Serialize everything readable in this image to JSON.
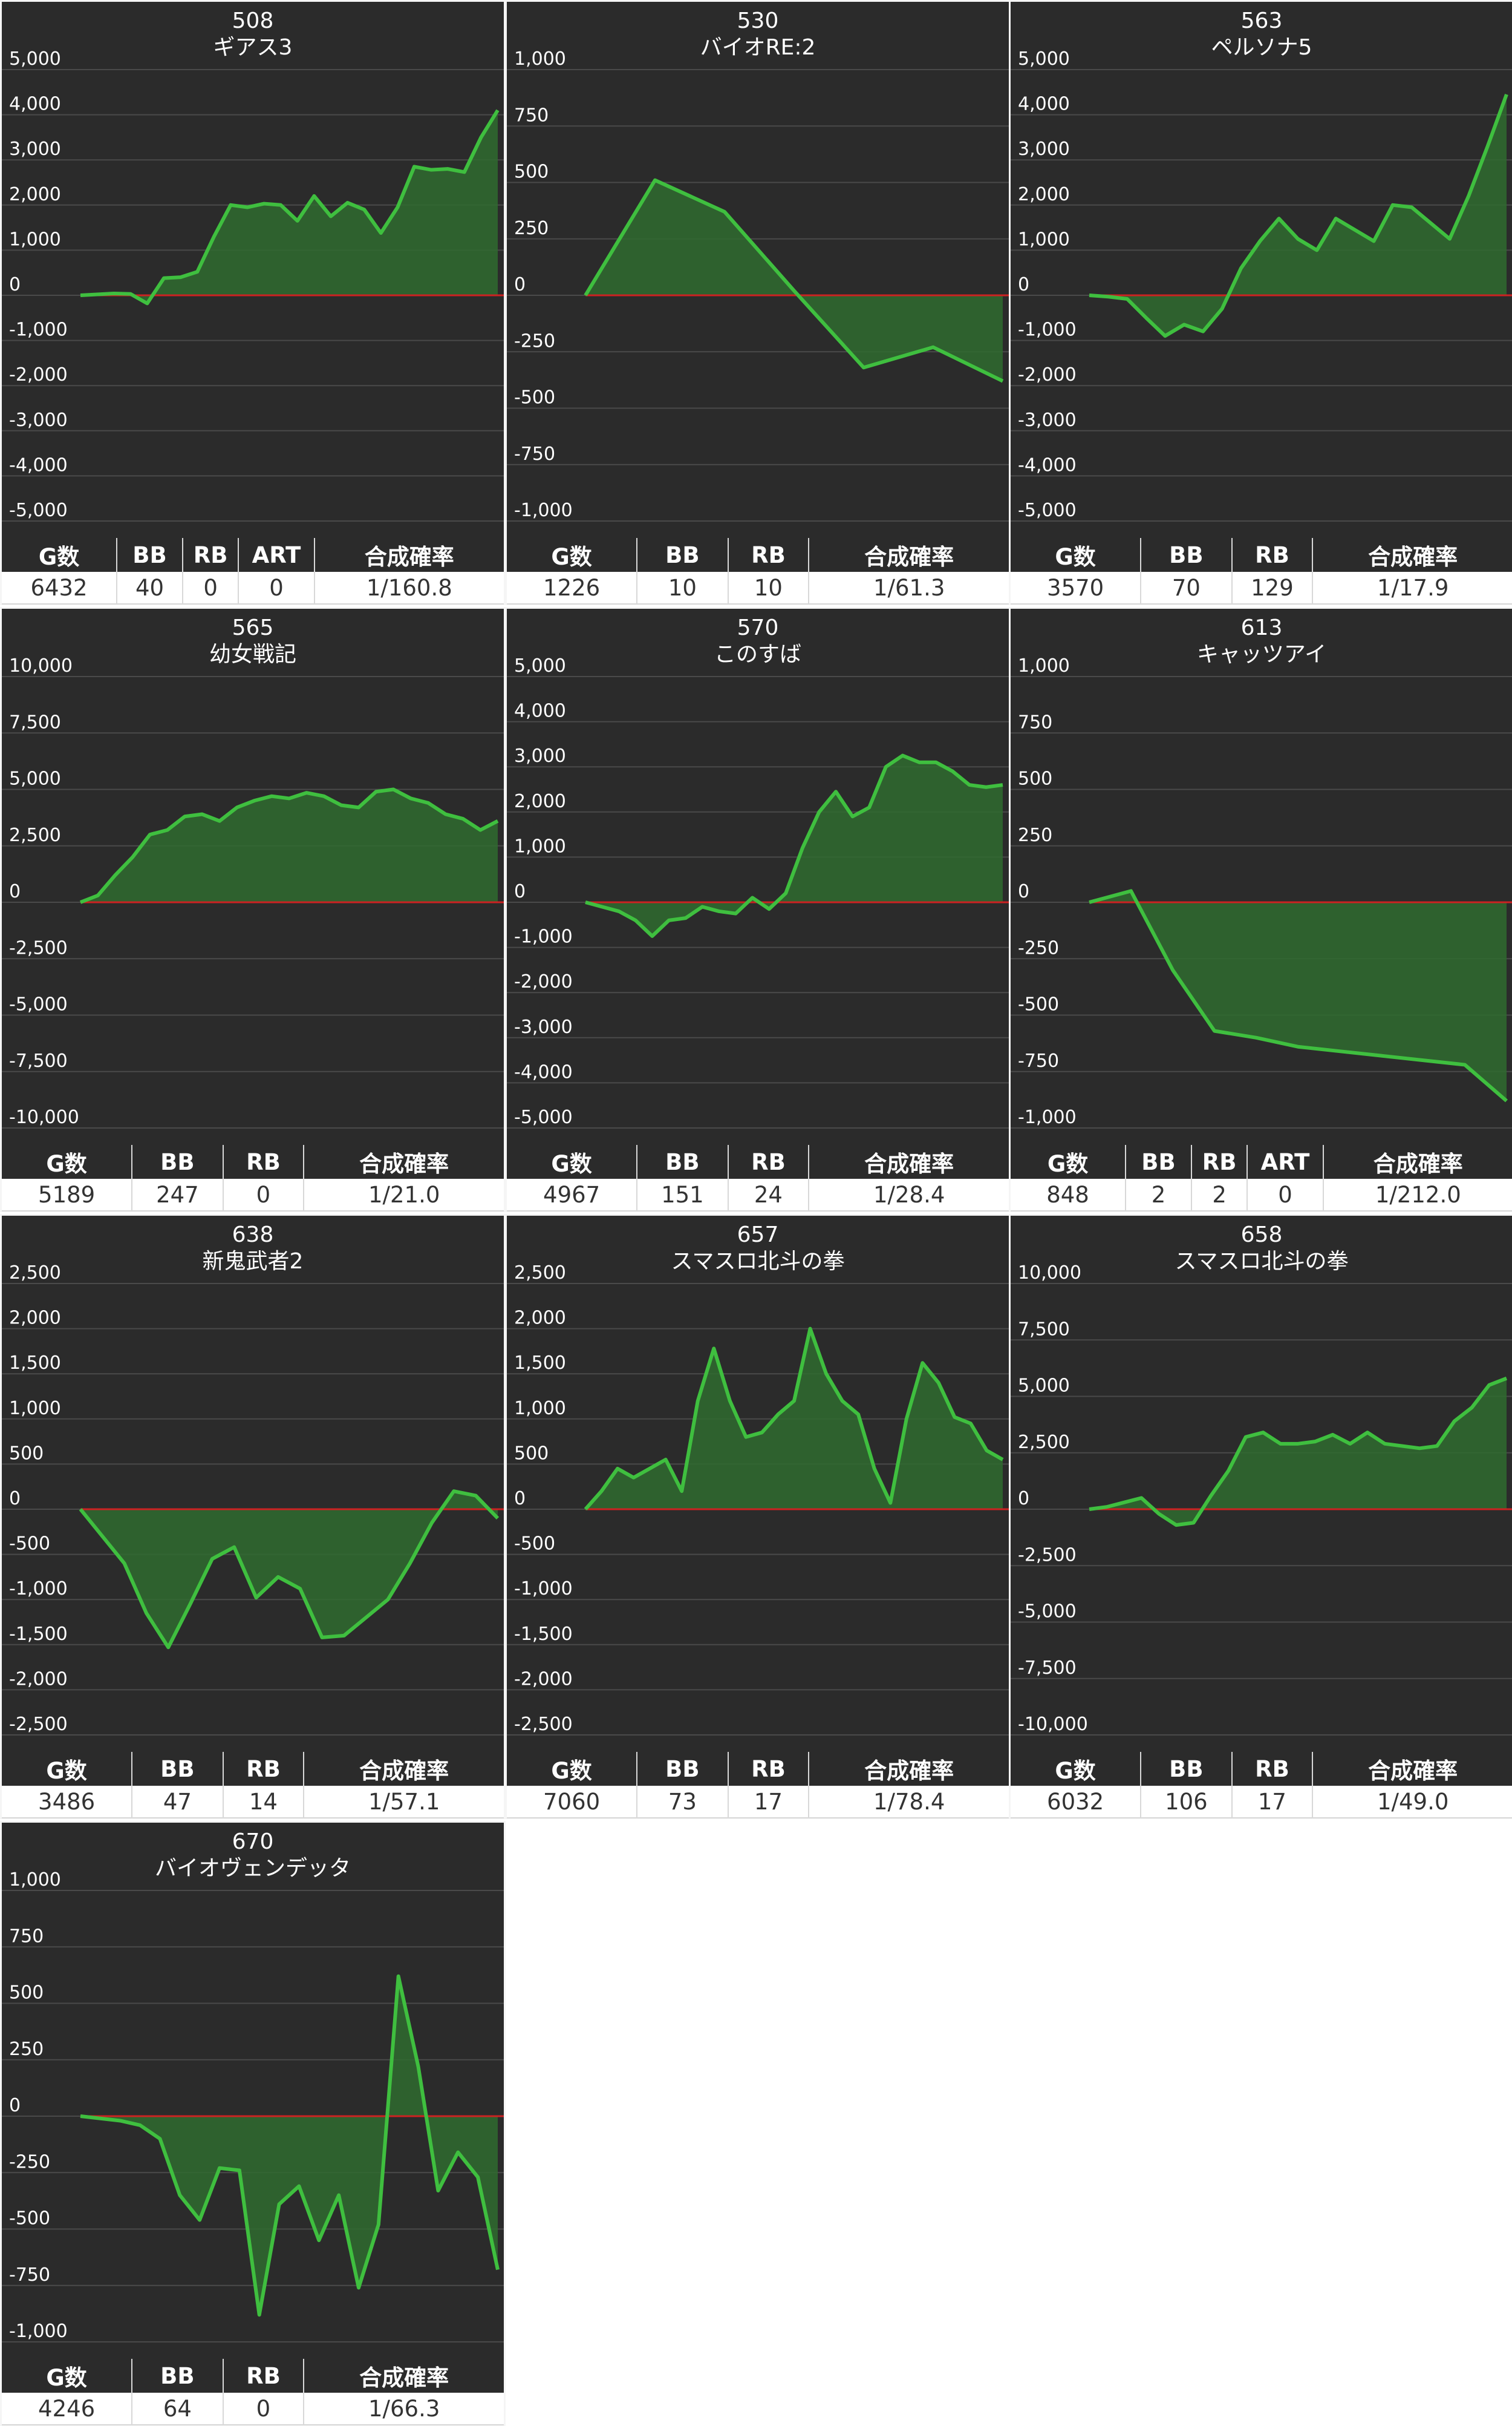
{
  "chart_data": [
    {
      "type": "area",
      "machine_no": "508",
      "title": "ギアス3",
      "yticks": [
        "5,000",
        "4,000",
        "3,000",
        "2,000",
        "1,000",
        "0",
        "-1,000",
        "-2,000",
        "-3,000",
        "-4,000",
        "-5,000"
      ],
      "ylim": [
        -5000,
        5000
      ],
      "values": [
        0,
        20,
        40,
        30,
        -180,
        380,
        400,
        520,
        1300,
        2000,
        1950,
        2030,
        2000,
        1650,
        2200,
        1750,
        2050,
        1900,
        1380,
        1950,
        2850,
        2780,
        2800,
        2730,
        3500,
        4100
      ],
      "stats": {
        "headers": [
          "G数",
          "BB",
          "RB",
          "ART",
          "合成確率"
        ],
        "values": [
          "6432",
          "40",
          "0",
          "0",
          "1/160.8"
        ]
      }
    },
    {
      "type": "area",
      "machine_no": "530",
      "title": "バイオRE:2",
      "yticks": [
        "1,000",
        "750",
        "500",
        "250",
        "0",
        "-250",
        "-500",
        "-750",
        "-1,000"
      ],
      "ylim": [
        -1000,
        1000
      ],
      "values": [
        0,
        510,
        370,
        20,
        -320,
        -230,
        -380
      ],
      "stats": {
        "headers": [
          "G数",
          "BB",
          "RB",
          "合成確率"
        ],
        "values": [
          "1226",
          "10",
          "10",
          "1/61.3"
        ]
      }
    },
    {
      "type": "area",
      "machine_no": "563",
      "title": "ペルソナ5",
      "yticks": [
        "5,000",
        "4,000",
        "3,000",
        "2,000",
        "1,000",
        "0",
        "-1,000",
        "-2,000",
        "-3,000",
        "-4,000",
        "-5,000"
      ],
      "ylim": [
        -5000,
        5000
      ],
      "values": [
        0,
        -30,
        -80,
        -500,
        -900,
        -650,
        -800,
        -300,
        600,
        1200,
        1700,
        1250,
        1000,
        1700,
        1450,
        1200,
        2000,
        1950,
        1600,
        1250,
        2200,
        3300,
        4450
      ],
      "stats": {
        "headers": [
          "G数",
          "BB",
          "RB",
          "合成確率"
        ],
        "values": [
          "3570",
          "70",
          "129",
          "1/17.9"
        ]
      }
    },
    {
      "type": "area",
      "machine_no": "565",
      "title": "幼女戦記",
      "yticks": [
        "10,000",
        "7,500",
        "5,000",
        "2,500",
        "0",
        "-2,500",
        "-5,000",
        "-7,500",
        "-10,000"
      ],
      "ylim": [
        -10000,
        10000
      ],
      "values": [
        0,
        300,
        1200,
        2000,
        3000,
        3200,
        3800,
        3900,
        3600,
        4200,
        4500,
        4700,
        4600,
        4850,
        4700,
        4300,
        4200,
        4900,
        5000,
        4600,
        4400,
        3900,
        3700,
        3200,
        3600
      ],
      "stats": {
        "headers": [
          "G数",
          "BB",
          "RB",
          "合成確率"
        ],
        "values": [
          "5189",
          "247",
          "0",
          "1/21.0"
        ]
      }
    },
    {
      "type": "area",
      "machine_no": "570",
      "title": "このすば",
      "yticks": [
        "5,000",
        "4,000",
        "3,000",
        "2,000",
        "1,000",
        "0",
        "-1,000",
        "-2,000",
        "-3,000",
        "-4,000",
        "-5,000"
      ],
      "ylim": [
        -5000,
        5000
      ],
      "values": [
        0,
        -100,
        -200,
        -400,
        -750,
        -400,
        -350,
        -100,
        -200,
        -250,
        100,
        -150,
        200,
        1200,
        2000,
        2450,
        1900,
        2100,
        3000,
        3250,
        3100,
        3100,
        2900,
        2600,
        2550,
        2600
      ],
      "stats": {
        "headers": [
          "G数",
          "BB",
          "RB",
          "合成確率"
        ],
        "values": [
          "4967",
          "151",
          "24",
          "1/28.4"
        ]
      }
    },
    {
      "type": "area",
      "machine_no": "613",
      "title": "キャッツアイ",
      "yticks": [
        "1,000",
        "750",
        "500",
        "250",
        "0",
        "-250",
        "-500",
        "-750",
        "-1,000"
      ],
      "ylim": [
        -1000,
        1000
      ],
      "values": [
        0,
        50,
        -300,
        -570,
        -600,
        -640,
        -660,
        -680,
        -700,
        -720,
        -880
      ],
      "stats": {
        "headers": [
          "G数",
          "BB",
          "RB",
          "ART",
          "合成確率"
        ],
        "values": [
          "848",
          "2",
          "2",
          "0",
          "1/212.0"
        ]
      }
    },
    {
      "type": "area",
      "machine_no": "638",
      "title": "新鬼武者2",
      "yticks": [
        "2,500",
        "2,000",
        "1,500",
        "1,000",
        "500",
        "0",
        "-500",
        "-1,000",
        "-1,500",
        "-2,000",
        "-2,500"
      ],
      "ylim": [
        -2500,
        2500
      ],
      "values": [
        0,
        -300,
        -600,
        -1150,
        -1530,
        -1050,
        -550,
        -420,
        -980,
        -750,
        -880,
        -1420,
        -1400,
        -1200,
        -1000,
        -600,
        -150,
        200,
        150,
        -100
      ],
      "stats": {
        "headers": [
          "G数",
          "BB",
          "RB",
          "合成確率"
        ],
        "values": [
          "3486",
          "47",
          "14",
          "1/57.1"
        ]
      }
    },
    {
      "type": "area",
      "machine_no": "657",
      "title": "スマスロ北斗の拳",
      "yticks": [
        "2,500",
        "2,000",
        "1,500",
        "1,000",
        "500",
        "0",
        "-500",
        "-1,000",
        "-1,500",
        "-2,000",
        "-2,500"
      ],
      "ylim": [
        -2500,
        2500
      ],
      "values": [
        0,
        200,
        450,
        350,
        450,
        550,
        200,
        1200,
        1780,
        1200,
        800,
        850,
        1050,
        1200,
        2000,
        1500,
        1200,
        1050,
        450,
        70,
        1000,
        1620,
        1400,
        1020,
        950,
        650,
        550
      ],
      "stats": {
        "headers": [
          "G数",
          "BB",
          "RB",
          "合成確率"
        ],
        "values": [
          "7060",
          "73",
          "17",
          "1/78.4"
        ]
      }
    },
    {
      "type": "area",
      "machine_no": "658",
      "title": "スマスロ北斗の拳",
      "yticks": [
        "10,000",
        "7,500",
        "5,000",
        "2,500",
        "0",
        "-2,500",
        "-5,000",
        "-7,500",
        "-10,000"
      ],
      "ylim": [
        -10000,
        10000
      ],
      "values": [
        0,
        100,
        300,
        500,
        -200,
        -700,
        -600,
        600,
        1700,
        3200,
        3400,
        2900,
        2900,
        3000,
        3300,
        2900,
        3400,
        2900,
        2800,
        2700,
        2800,
        3900,
        4500,
        5500,
        5800
      ],
      "stats": {
        "headers": [
          "G数",
          "BB",
          "RB",
          "合成確率"
        ],
        "values": [
          "6032",
          "106",
          "17",
          "1/49.0"
        ]
      }
    },
    {
      "type": "area",
      "machine_no": "670",
      "title": "バイオヴェンデッタ",
      "yticks": [
        "1,000",
        "750",
        "500",
        "250",
        "0",
        "-250",
        "-500",
        "-750",
        "-1,000"
      ],
      "ylim": [
        -1000,
        1000
      ],
      "values": [
        0,
        -10,
        -20,
        -40,
        -100,
        -350,
        -460,
        -230,
        -240,
        -880,
        -390,
        -310,
        -550,
        -350,
        -760,
        -480,
        620,
        220,
        -330,
        -160,
        -270,
        -680
      ],
      "stats": {
        "headers": [
          "G数",
          "BB",
          "RB",
          "合成確率"
        ],
        "values": [
          "4246",
          "64",
          "0",
          "1/66.3"
        ]
      }
    }
  ],
  "colors": {
    "panel_bg": "#2b2b2b",
    "line": "#3fbf3f",
    "fill": "#2f6b2f",
    "zero_line": "#cc2222",
    "grid": "#4a4a4a",
    "text": "#ffffff"
  }
}
